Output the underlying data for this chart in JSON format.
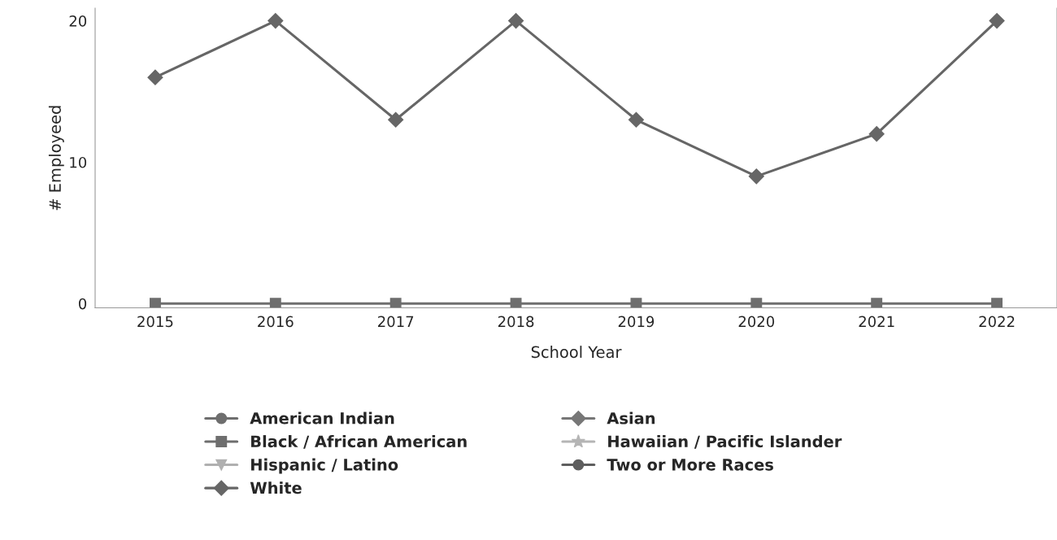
{
  "chart_data": {
    "type": "line",
    "xlabel": "School Year",
    "ylabel": "# Employeed",
    "categories": [
      "2015",
      "2016",
      "2017",
      "2018",
      "2019",
      "2020",
      "2021",
      "2022"
    ],
    "ylim": [
      -0.3,
      20.9
    ],
    "yticks": [
      0,
      10,
      20
    ],
    "grid": false,
    "legend": "bottom",
    "series": [
      {
        "name": "American Indian",
        "color": "#6e6e6e",
        "marker": "circle",
        "values": [
          null,
          null,
          null,
          null,
          null,
          null,
          null,
          null
        ]
      },
      {
        "name": "Black / African American",
        "color": "#6e6e6e",
        "marker": "square",
        "values": [
          0,
          0,
          0,
          0,
          0,
          0,
          0,
          0
        ]
      },
      {
        "name": "Hispanic / Latino",
        "color": "#b0b0b0",
        "marker": "triangle",
        "values": [
          null,
          null,
          null,
          null,
          null,
          null,
          null,
          null
        ]
      },
      {
        "name": "White",
        "color": "#666666",
        "marker": "diamond",
        "values": [
          16,
          20,
          13,
          20,
          13,
          9,
          12,
          20
        ]
      },
      {
        "name": "Asian",
        "color": "#777777",
        "marker": "diamond",
        "values": [
          null,
          null,
          null,
          null,
          null,
          null,
          null,
          null
        ]
      },
      {
        "name": "Hawaiian / Pacific Islander",
        "color": "#b5b5b5",
        "marker": "star",
        "values": [
          null,
          null,
          null,
          null,
          null,
          null,
          null,
          null
        ]
      },
      {
        "name": "Two or More Races",
        "color": "#5e5e5e",
        "marker": "circle",
        "values": [
          null,
          null,
          null,
          null,
          null,
          null,
          null,
          null
        ]
      }
    ]
  }
}
